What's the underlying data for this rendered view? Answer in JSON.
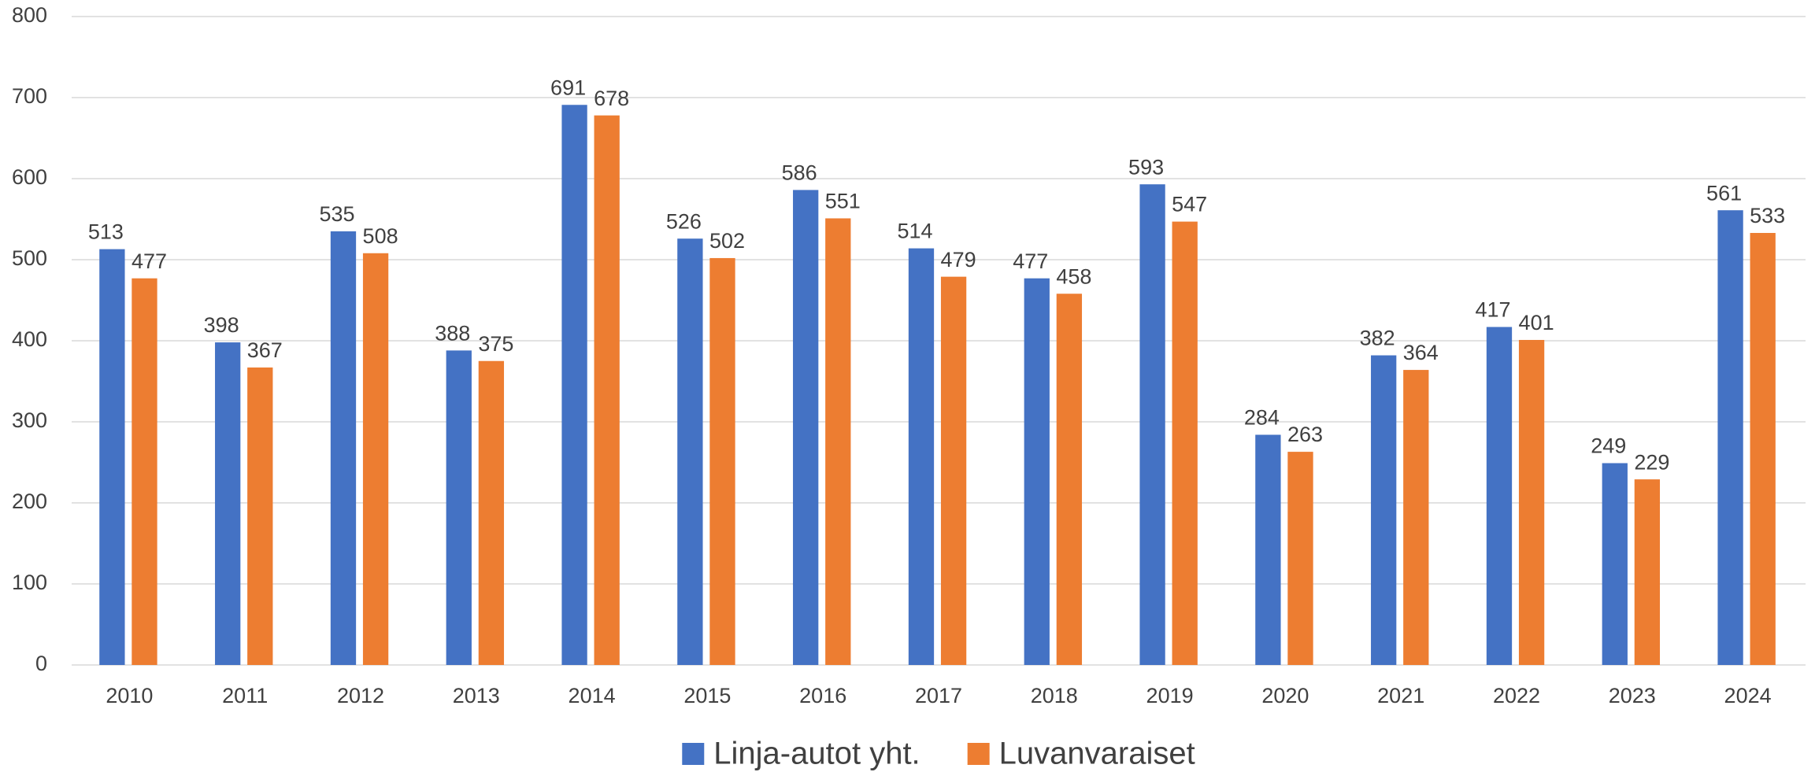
{
  "chart_data": {
    "type": "bar",
    "categories": [
      "2010",
      "2011",
      "2012",
      "2013",
      "2014",
      "2015",
      "2016",
      "2017",
      "2018",
      "2019",
      "2020",
      "2021",
      "2022",
      "2023",
      "2024"
    ],
    "series": [
      {
        "name": "Linja-autot yht.",
        "color": "#4472c4",
        "values": [
          513,
          398,
          535,
          388,
          691,
          526,
          586,
          514,
          477,
          593,
          284,
          382,
          417,
          249,
          561
        ]
      },
      {
        "name": "Luvanvaraiset",
        "color": "#ed7d31",
        "values": [
          477,
          367,
          508,
          375,
          678,
          502,
          551,
          479,
          458,
          547,
          263,
          364,
          401,
          229,
          533
        ]
      }
    ],
    "ylim": [
      0,
      800
    ],
    "yticks": [
      0,
      100,
      200,
      300,
      400,
      500,
      600,
      700,
      800
    ],
    "grid": true,
    "legend": "bottom"
  }
}
